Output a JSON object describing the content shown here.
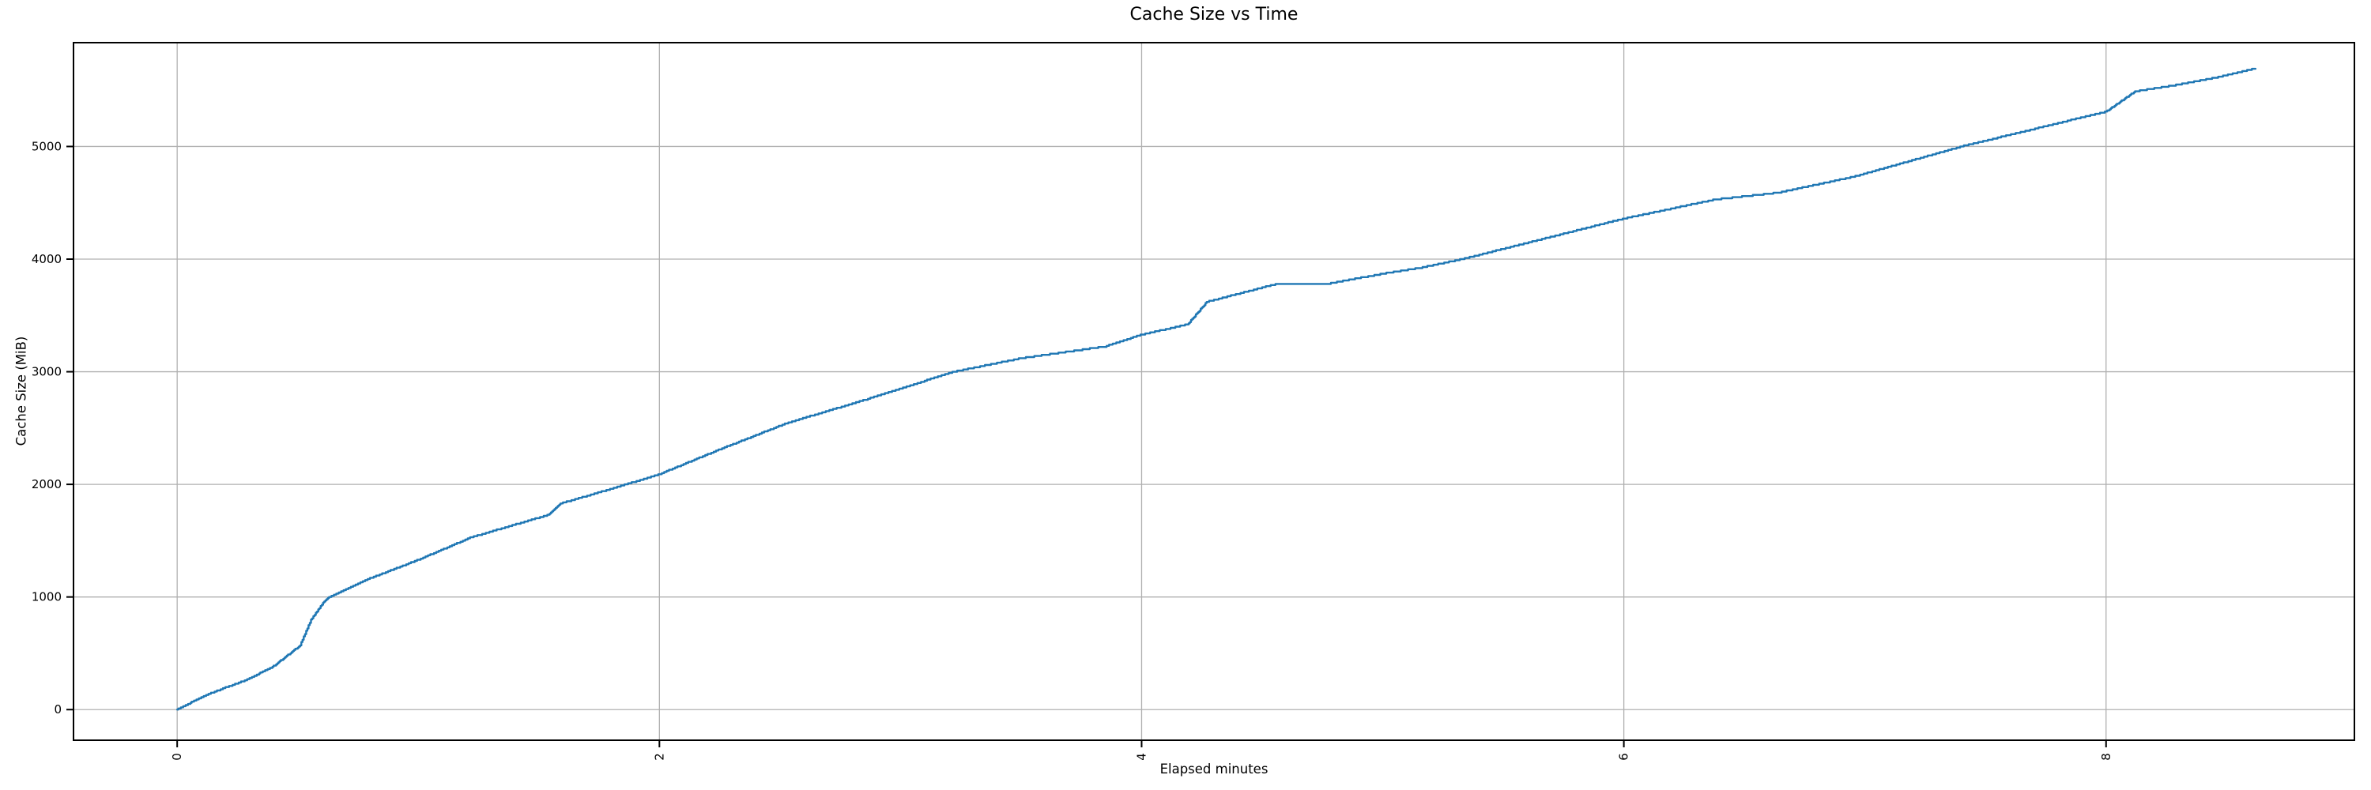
{
  "figure": {
    "title": "Cache Size vs Time",
    "xlabel": "Elapsed minutes",
    "ylabel": "Cache Size (MiB)"
  },
  "chart_data": {
    "type": "line",
    "title": "Cache Size vs Time",
    "xlabel": "Elapsed minutes",
    "ylabel": "Cache Size (MiB)",
    "x_unit": "minutes",
    "y_unit": "MiB",
    "xlim": [
      -0.43,
      9.03
    ],
    "ylim": [
      -272,
      5922
    ],
    "xticks": [
      "0",
      "2",
      "4",
      "6",
      "8"
    ],
    "xtick_values": [
      0,
      2,
      4,
      6,
      8
    ],
    "xtick_rotation_deg": 90,
    "yticks": [
      "0",
      "1000",
      "2000",
      "3000",
      "4000",
      "5000"
    ],
    "ytick_values": [
      0,
      1000,
      2000,
      3000,
      4000,
      5000
    ],
    "grid": true,
    "legend": false,
    "colors": {
      "line": "#1f77b4",
      "grid": "#b0b0b0",
      "spine": "#000000",
      "background": "#ffffff",
      "text": "#000000"
    },
    "style": {
      "step_quantization_mib": 10,
      "sample_interval_min": 0.005,
      "line_width": 2.4
    },
    "series": [
      {
        "name": "Cache Size",
        "points": [
          [
            0.0,
            0
          ],
          [
            0.05,
            55
          ],
          [
            0.12,
            130
          ],
          [
            0.2,
            195
          ],
          [
            0.29,
            265
          ],
          [
            0.4,
            385
          ],
          [
            0.51,
            570
          ],
          [
            0.555,
            800
          ],
          [
            0.61,
            960
          ],
          [
            0.63,
            1000
          ],
          [
            0.8,
            1165
          ],
          [
            1.0,
            1330
          ],
          [
            1.22,
            1530
          ],
          [
            1.54,
            1730
          ],
          [
            1.59,
            1830
          ],
          [
            1.8,
            1960
          ],
          [
            2.0,
            2090
          ],
          [
            2.25,
            2310
          ],
          [
            2.53,
            2545
          ],
          [
            2.86,
            2755
          ],
          [
            3.22,
            3000
          ],
          [
            3.5,
            3120
          ],
          [
            3.85,
            3225
          ],
          [
            4.0,
            3330
          ],
          [
            4.19,
            3420
          ],
          [
            4.27,
            3620
          ],
          [
            4.56,
            3780
          ],
          [
            4.78,
            3785
          ],
          [
            5.0,
            3870
          ],
          [
            5.16,
            3925
          ],
          [
            5.33,
            4000
          ],
          [
            5.6,
            4145
          ],
          [
            6.0,
            4360
          ],
          [
            6.38,
            4530
          ],
          [
            6.64,
            4590
          ],
          [
            6.95,
            4730
          ],
          [
            7.4,
            5000
          ],
          [
            7.7,
            5155
          ],
          [
            8.0,
            5310
          ],
          [
            8.12,
            5490
          ],
          [
            8.3,
            5550
          ],
          [
            8.45,
            5610
          ],
          [
            8.62,
            5695
          ]
        ]
      }
    ]
  }
}
